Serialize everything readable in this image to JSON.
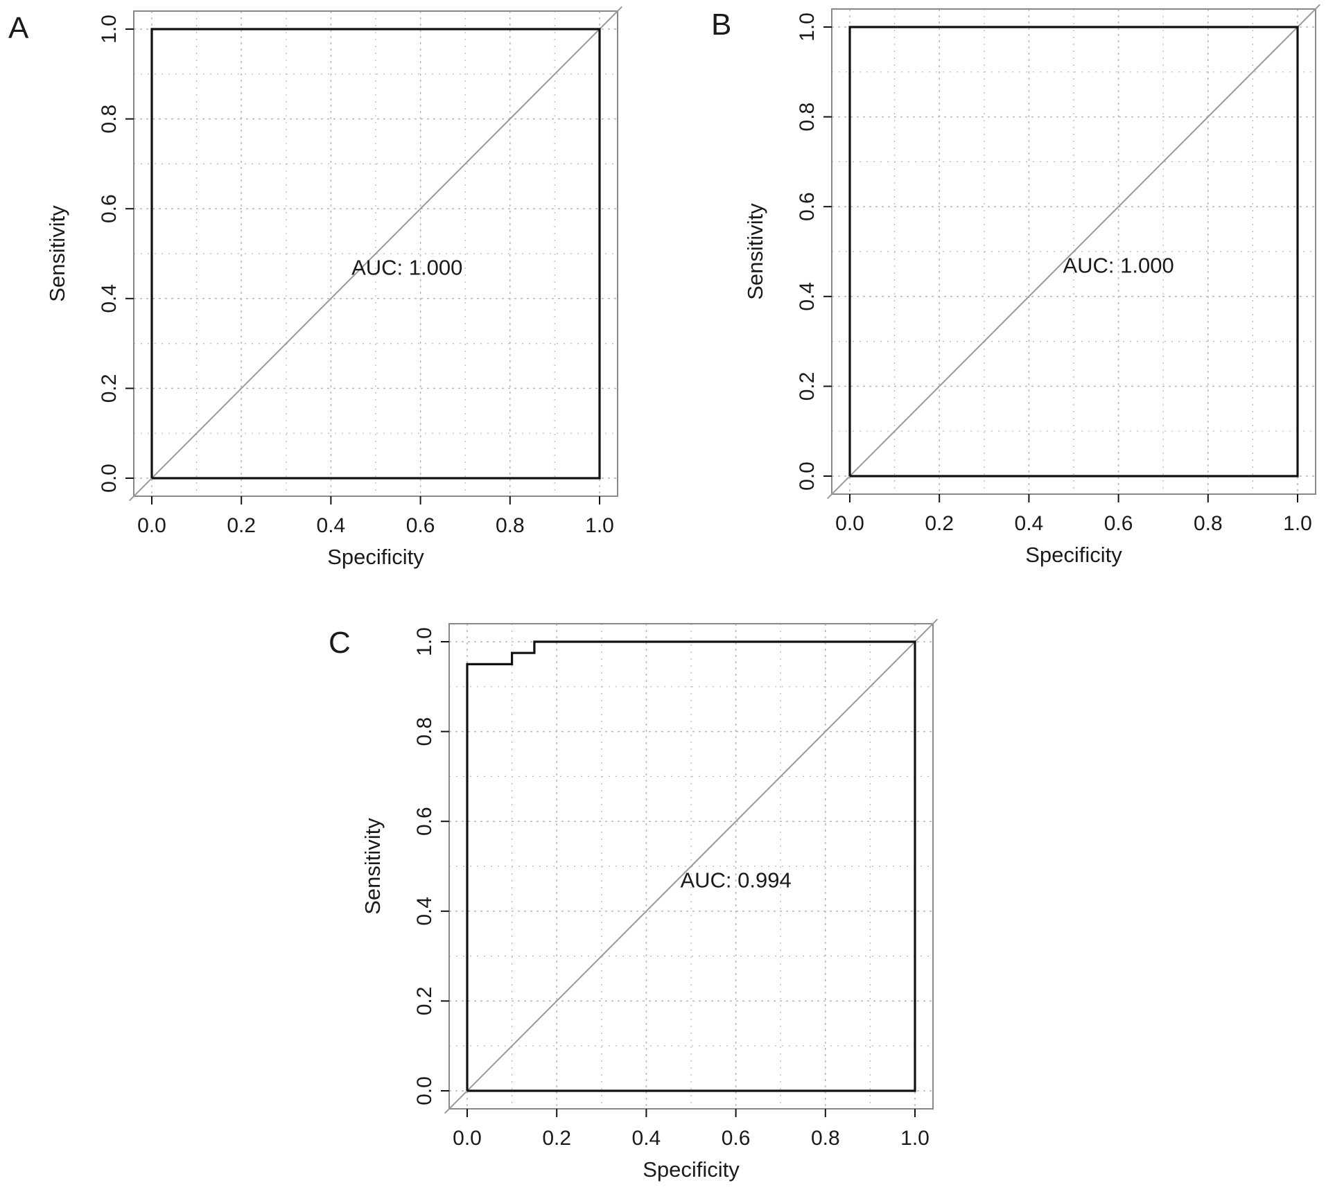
{
  "colors": {
    "curve": "#111111",
    "diagonal": "#999999",
    "frame": "#888888",
    "grid": "#b5b5b5",
    "text": "#1a1a1a"
  },
  "chart_data": [
    {
      "panel": "A",
      "type": "line",
      "xlabel": "Specificity",
      "ylabel": "Sensitivity",
      "xlim": [
        0,
        1
      ],
      "ylim": [
        0,
        1
      ],
      "x_ticks": [
        "0.0",
        "0.2",
        "0.4",
        "0.6",
        "0.8",
        "1.0"
      ],
      "y_ticks": [
        "0.0",
        "0.2",
        "0.4",
        "0.6",
        "0.8",
        "1.0"
      ],
      "grid": "dotted",
      "annotation": "AUC: 1.000",
      "annotation_at": [
        0.57,
        0.47
      ],
      "curve": {
        "specificity": [
          0.0,
          0.0,
          1.0,
          1.0,
          0.0
        ],
        "sensitivity": [
          0.0,
          1.0,
          1.0,
          0.0,
          0.0
        ]
      },
      "reference_line": {
        "from": [
          0,
          0
        ],
        "to": [
          1,
          1
        ]
      }
    },
    {
      "panel": "B",
      "type": "line",
      "xlabel": "Specificity",
      "ylabel": "Sensitivity",
      "xlim": [
        0,
        1
      ],
      "ylim": [
        0,
        1
      ],
      "x_ticks": [
        "0.0",
        "0.2",
        "0.4",
        "0.6",
        "0.8",
        "1.0"
      ],
      "y_ticks": [
        "0.0",
        "0.2",
        "0.4",
        "0.6",
        "0.8",
        "1.0"
      ],
      "grid": "dotted",
      "annotation": "AUC: 1.000",
      "annotation_at": [
        0.6,
        0.47
      ],
      "curve": {
        "specificity": [
          0.0,
          0.0,
          1.0,
          1.0,
          0.0
        ],
        "sensitivity": [
          0.0,
          1.0,
          1.0,
          0.0,
          0.0
        ]
      },
      "reference_line": {
        "from": [
          0,
          0
        ],
        "to": [
          1,
          1
        ]
      }
    },
    {
      "panel": "C",
      "type": "line",
      "xlabel": "Specificity",
      "ylabel": "Sensitivity",
      "xlim": [
        0,
        1
      ],
      "ylim": [
        0,
        1
      ],
      "x_ticks": [
        "0.0",
        "0.2",
        "0.4",
        "0.6",
        "0.8",
        "1.0"
      ],
      "y_ticks": [
        "0.0",
        "0.2",
        "0.4",
        "0.6",
        "0.8",
        "1.0"
      ],
      "grid": "dotted",
      "annotation": "AUC: 0.994",
      "annotation_at": [
        0.6,
        0.47
      ],
      "curve": {
        "specificity": [
          0.0,
          0.0,
          0.1,
          0.1,
          0.15,
          0.15,
          1.0,
          1.0,
          0.0
        ],
        "sensitivity": [
          0.0,
          0.95,
          0.95,
          0.975,
          0.975,
          1.0,
          1.0,
          0.0,
          0.0
        ]
      },
      "reference_line": {
        "from": [
          0,
          0
        ],
        "to": [
          1,
          1
        ]
      }
    }
  ]
}
